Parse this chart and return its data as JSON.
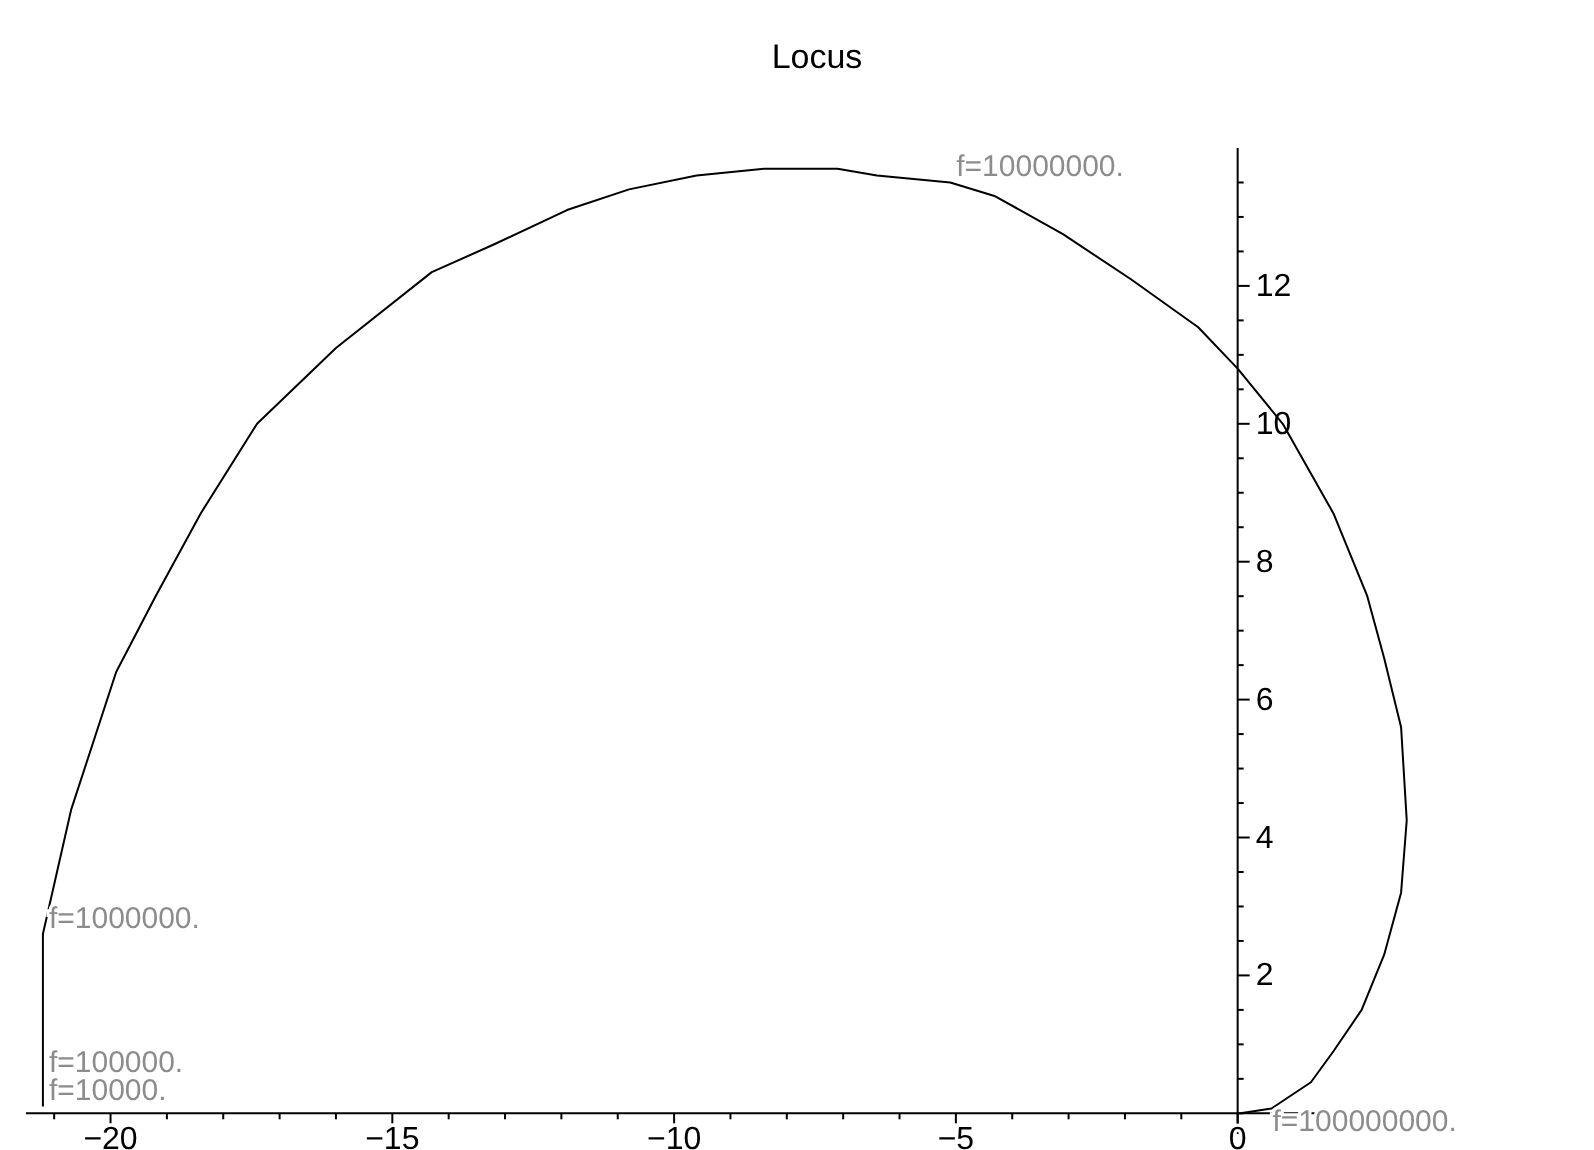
{
  "chart_data": {
    "type": "line",
    "title": "Locus",
    "x": [
      -21.2,
      -21.2,
      -20.7,
      -19.9,
      -19.2,
      -18.4,
      -17.4,
      -16.0,
      -14.3,
      -13.2,
      -11.9,
      -10.8,
      -9.6,
      -8.4,
      -7.1,
      -6.4,
      -5.1,
      -4.3,
      -3.1,
      -1.9,
      -0.7,
      0,
      0.8,
      1.7,
      2.3,
      2.6,
      2.9,
      3.0,
      2.9,
      2.6,
      2.2,
      1.7,
      1.3,
      0.6,
      0.05
    ],
    "series": [
      {
        "color": "#000000",
        "values": [
          0.1,
          2.6,
          4.4,
          6.4,
          7.5,
          8.7,
          10.0,
          11.1,
          12.2,
          12.6,
          13.1,
          13.4,
          13.6,
          13.7,
          13.7,
          13.6,
          13.5,
          13.3,
          12.75,
          12.1,
          11.4,
          10.8,
          10.0,
          8.7,
          7.5,
          6.6,
          5.6,
          4.25,
          3.2,
          2.3,
          1.5,
          0.9,
          0.45,
          0.07,
          0
        ]
      }
    ],
    "xlim": [
      -21.5,
      3.2
    ],
    "ylim": [
      -0.3,
      14
    ],
    "xticks": [
      -20,
      -15,
      -10,
      -5,
      0,
      {
        "value": -21,
        "label": null
      },
      {
        "value": -19,
        "label": null
      },
      {
        "value": -18,
        "label": null
      },
      {
        "value": -17,
        "label": null
      },
      {
        "value": -16,
        "label": null
      },
      {
        "value": -14,
        "label": null
      },
      {
        "value": -13,
        "label": null
      },
      {
        "value": -12,
        "label": null
      },
      {
        "value": -11,
        "label": null
      },
      {
        "value": -9,
        "label": null
      },
      {
        "value": -8,
        "label": null
      },
      {
        "value": -7,
        "label": null
      },
      {
        "value": -6,
        "label": null
      },
      {
        "value": -4,
        "label": null
      },
      {
        "value": -3,
        "label": null
      },
      {
        "value": -2,
        "label": null
      },
      {
        "value": -1,
        "label": null
      }
    ],
    "yticks": [
      {
        "value": 0,
        "label": null
      },
      2,
      4,
      6,
      8,
      10,
      12,
      {
        "value": 0.5,
        "label": null
      },
      {
        "value": 1,
        "label": null
      },
      {
        "value": 1.5,
        "label": null
      },
      {
        "value": 2.5,
        "label": null
      },
      {
        "value": 3,
        "label": null
      },
      {
        "value": 3.5,
        "label": null
      },
      {
        "value": 4.5,
        "label": null
      },
      {
        "value": 5,
        "label": null
      },
      {
        "value": 5.5,
        "label": null
      },
      {
        "value": 6.5,
        "label": null
      },
      {
        "value": 7,
        "label": null
      },
      {
        "value": 7.5,
        "label": null
      },
      {
        "value": 8.5,
        "label": null
      },
      {
        "value": 9,
        "label": null
      },
      {
        "value": 9.5,
        "label": null
      },
      {
        "value": 10.5,
        "label": null
      },
      {
        "value": 11,
        "label": null
      },
      {
        "value": 11.5,
        "label": null
      },
      {
        "value": 12.5,
        "label": null
      },
      {
        "value": 13,
        "label": null
      },
      {
        "value": 13.5,
        "label": null
      }
    ],
    "annotations": [
      {
        "text": "f=10000000.",
        "x": -5.1,
        "y": 13.5
      },
      {
        "text": "f=1000000.",
        "x": -21.2,
        "y": 2.6
      },
      {
        "text": "f=100000.",
        "x": -21.2,
        "y": 0.1
      },
      {
        "text": "f=10000.",
        "x": -21.2,
        "y": 0.1
      },
      {
        "text": "f=100000000.",
        "x": 0.05,
        "y": 0
      }
    ],
    "grid": false
  }
}
